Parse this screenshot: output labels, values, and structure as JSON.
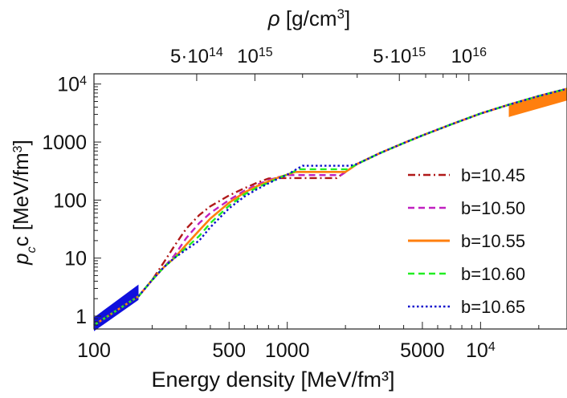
{
  "chart_data": {
    "type": "line",
    "xlabel": "Energy density [MeV/fm³]",
    "ylabel": {
      "p": "p",
      "sub": "c",
      "rest": "c [MeV/fm",
      "sup": "3",
      "end": "]"
    },
    "top_axis_label": {
      "rho": "ρ",
      "rest": " [g/cm",
      "sup": "3",
      "end": "]"
    },
    "x_scale": "log",
    "y_scale": "log",
    "xlim": [
      100,
      28000
    ],
    "ylim": [
      0.6,
      15000
    ],
    "x_ticks": [
      {
        "value": 100,
        "label": "100"
      },
      {
        "value": 500,
        "label": "500"
      },
      {
        "value": 1000,
        "label": "1000"
      },
      {
        "value": 5000,
        "label": "5000"
      },
      {
        "value": 10000,
        "base": "10",
        "exp": "4"
      }
    ],
    "y_ticks": [
      {
        "value": 1,
        "label": "1"
      },
      {
        "value": 10,
        "label": "10"
      },
      {
        "value": 100,
        "label": "100"
      },
      {
        "value": 1000,
        "label": "1000"
      },
      {
        "value": 10000,
        "base": "10",
        "exp": "4"
      }
    ],
    "top_ticks": [
      {
        "energy": 340,
        "mant": "5·10",
        "exp": "14"
      },
      {
        "energy": 680,
        "mant": "10",
        "exp": "15"
      },
      {
        "energy": 3800,
        "mant": "5·10",
        "exp": "15"
      },
      {
        "energy": 8700,
        "mant": "10",
        "exp": "16"
      }
    ],
    "series": [
      {
        "name": "b=10.45",
        "color": "#b01818",
        "dash": "dashdot",
        "x": [
          100,
          170,
          200,
          230,
          260,
          300,
          350,
          400,
          500,
          600,
          700,
          800,
          900,
          1800,
          2300,
          3000,
          4000,
          5000,
          7000,
          10000,
          14000,
          20000,
          28000
        ],
        "y": [
          0.7,
          2.2,
          4.2,
          8.5,
          16,
          32,
          55,
          78,
          120,
          160,
          200,
          235,
          240,
          240,
          420,
          640,
          960,
          1300,
          2000,
          3100,
          4400,
          6200,
          8300
        ]
      },
      {
        "name": "b=10.50",
        "color": "#c020c0",
        "dash": "dash",
        "x": [
          100,
          170,
          200,
          230,
          260,
          300,
          350,
          400,
          500,
          600,
          700,
          800,
          900,
          1000,
          1900,
          2300,
          3000,
          4000,
          5000,
          7000,
          10000,
          14000,
          20000,
          28000
        ],
        "y": [
          0.7,
          2.2,
          4.2,
          7,
          11,
          22,
          40,
          60,
          100,
          145,
          185,
          220,
          250,
          270,
          270,
          420,
          640,
          960,
          1300,
          2000,
          3100,
          4400,
          6200,
          8300
        ]
      },
      {
        "name": "b=10.55",
        "color": "#ff7f0e",
        "dash": "solid",
        "x": [
          100,
          170,
          200,
          230,
          260,
          300,
          350,
          400,
          500,
          600,
          700,
          800,
          900,
          1000,
          1100,
          2000,
          2300,
          3000,
          4000,
          5000,
          7000,
          10000,
          14000,
          20000,
          28000
        ],
        "y": [
          0.7,
          2.2,
          4.2,
          7,
          10,
          17,
          30,
          48,
          90,
          135,
          175,
          210,
          245,
          275,
          305,
          305,
          420,
          640,
          960,
          1300,
          2000,
          3100,
          4400,
          6200,
          8300
        ]
      },
      {
        "name": "b=10.60",
        "color": "#22ee22",
        "dash": "dash",
        "x": [
          100,
          170,
          200,
          230,
          260,
          300,
          350,
          400,
          500,
          600,
          700,
          800,
          900,
          1000,
          1150,
          2050,
          2300,
          3000,
          4000,
          5000,
          7000,
          10000,
          14000,
          20000,
          28000
        ],
        "y": [
          0.7,
          2.2,
          4.2,
          7,
          10,
          15,
          24,
          40,
          80,
          125,
          165,
          200,
          240,
          275,
          340,
          340,
          420,
          640,
          960,
          1300,
          2000,
          3100,
          4400,
          6200,
          8300
        ]
      },
      {
        "name": "b=10.65",
        "color": "#1010cc",
        "dash": "dot",
        "x": [
          100,
          170,
          200,
          230,
          260,
          300,
          350,
          400,
          500,
          600,
          700,
          800,
          900,
          1000,
          1200,
          2100,
          2300,
          3000,
          4000,
          5000,
          7000,
          10000,
          14000,
          20000,
          28000
        ],
        "y": [
          0.7,
          2.2,
          4.2,
          7,
          10,
          14,
          20,
          34,
          72,
          115,
          155,
          195,
          235,
          275,
          390,
          390,
          420,
          640,
          960,
          1300,
          2000,
          3100,
          4400,
          6200,
          8300
        ]
      }
    ],
    "bands": [
      {
        "color": "#1010dd",
        "x": [
          100,
          170
        ],
        "lower": [
          0.55,
          1.9
        ],
        "upper": [
          0.95,
          3.5
        ]
      },
      {
        "color": "#ff7f0e",
        "x": [
          14000,
          28000
        ],
        "lower": [
          2700,
          5200
        ],
        "upper": [
          4400,
          8300
        ]
      }
    ],
    "legend_position": "right"
  }
}
